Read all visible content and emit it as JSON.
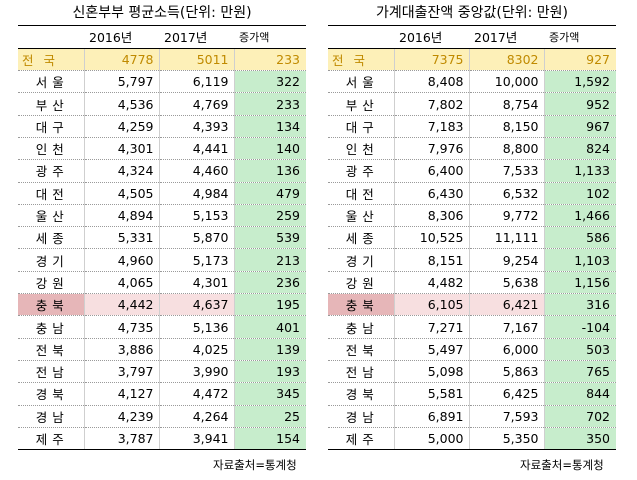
{
  "left_table": {
    "title": "신혼부부 평균소득(단위: 만원)",
    "headers": [
      "",
      "2016년",
      "2017년",
      "증가액"
    ],
    "national": {
      "region": "전 국",
      "y2016": "4778",
      "y2017": "5011",
      "increase": "233"
    },
    "rows": [
      {
        "region": "서울",
        "y2016": "5,797",
        "y2017": "6,119",
        "increase": "322"
      },
      {
        "region": "부산",
        "y2016": "4,536",
        "y2017": "4,769",
        "increase": "233"
      },
      {
        "region": "대구",
        "y2016": "4,259",
        "y2017": "4,393",
        "increase": "134"
      },
      {
        "region": "인천",
        "y2016": "4,301",
        "y2017": "4,441",
        "increase": "140"
      },
      {
        "region": "광주",
        "y2016": "4,324",
        "y2017": "4,460",
        "increase": "136"
      },
      {
        "region": "대전",
        "y2016": "4,505",
        "y2017": "4,984",
        "increase": "479"
      },
      {
        "region": "울산",
        "y2016": "4,894",
        "y2017": "5,153",
        "increase": "259"
      },
      {
        "region": "세종",
        "y2016": "5,331",
        "y2017": "5,870",
        "increase": "539"
      },
      {
        "region": "경기",
        "y2016": "4,960",
        "y2017": "5,173",
        "increase": "213"
      },
      {
        "region": "강원",
        "y2016": "4,065",
        "y2017": "4,301",
        "increase": "236"
      },
      {
        "region": "충북",
        "y2016": "4,442",
        "y2017": "4,637",
        "increase": "195",
        "highlight": true
      },
      {
        "region": "충남",
        "y2016": "4,735",
        "y2017": "5,136",
        "increase": "401"
      },
      {
        "region": "전북",
        "y2016": "3,886",
        "y2017": "4,025",
        "increase": "139"
      },
      {
        "region": "전남",
        "y2016": "3,797",
        "y2017": "3,990",
        "increase": "193"
      },
      {
        "region": "경북",
        "y2016": "4,127",
        "y2017": "4,472",
        "increase": "345"
      },
      {
        "region": "경남",
        "y2016": "4,239",
        "y2017": "4,264",
        "increase": "25"
      },
      {
        "region": "제주",
        "y2016": "3,787",
        "y2017": "3,941",
        "increase": "154"
      }
    ],
    "source": "자료출처=통계청"
  },
  "right_table": {
    "title": "가계대출잔액 중앙값(단위: 만원)",
    "headers": [
      "",
      "2016년",
      "2017년",
      "증가액"
    ],
    "national": {
      "region": "전 국",
      "y2016": "7375",
      "y2017": "8302",
      "increase": "927"
    },
    "rows": [
      {
        "region": "서울",
        "y2016": "8,408",
        "y2017": "10,000",
        "increase": "1,592"
      },
      {
        "region": "부산",
        "y2016": "7,802",
        "y2017": "8,754",
        "increase": "952"
      },
      {
        "region": "대구",
        "y2016": "7,183",
        "y2017": "8,150",
        "increase": "967"
      },
      {
        "region": "인천",
        "y2016": "7,976",
        "y2017": "8,800",
        "increase": "824"
      },
      {
        "region": "광주",
        "y2016": "6,400",
        "y2017": "7,533",
        "increase": "1,133"
      },
      {
        "region": "대전",
        "y2016": "6,430",
        "y2017": "6,532",
        "increase": "102"
      },
      {
        "region": "울산",
        "y2016": "8,306",
        "y2017": "9,772",
        "increase": "1,466"
      },
      {
        "region": "세종",
        "y2016": "10,525",
        "y2017": "11,111",
        "increase": "586"
      },
      {
        "region": "경기",
        "y2016": "8,151",
        "y2017": "9,254",
        "increase": "1,103"
      },
      {
        "region": "강원",
        "y2016": "4,482",
        "y2017": "5,638",
        "increase": "1,156"
      },
      {
        "region": "충북",
        "y2016": "6,105",
        "y2017": "6,421",
        "increase": "316",
        "highlight": true
      },
      {
        "region": "충남",
        "y2016": "7,271",
        "y2017": "7,167",
        "increase": "-104"
      },
      {
        "region": "전북",
        "y2016": "5,497",
        "y2017": "6,000",
        "increase": "503"
      },
      {
        "region": "전남",
        "y2016": "5,098",
        "y2017": "5,863",
        "increase": "765"
      },
      {
        "region": "경북",
        "y2016": "5,581",
        "y2017": "6,425",
        "increase": "844"
      },
      {
        "region": "경남",
        "y2016": "6,891",
        "y2017": "7,593",
        "increase": "702"
      },
      {
        "region": "제주",
        "y2016": "5,000",
        "y2017": "5,350",
        "increase": "350"
      }
    ],
    "source": "자료출처=통계청"
  },
  "colors": {
    "national_bg": "#fdf0b8",
    "national_text": "#c08a00",
    "increase_bg": "#c7edcc",
    "highlight_region_bg": "#e6b6b8",
    "highlight_value_bg": "#f7dfe0"
  }
}
